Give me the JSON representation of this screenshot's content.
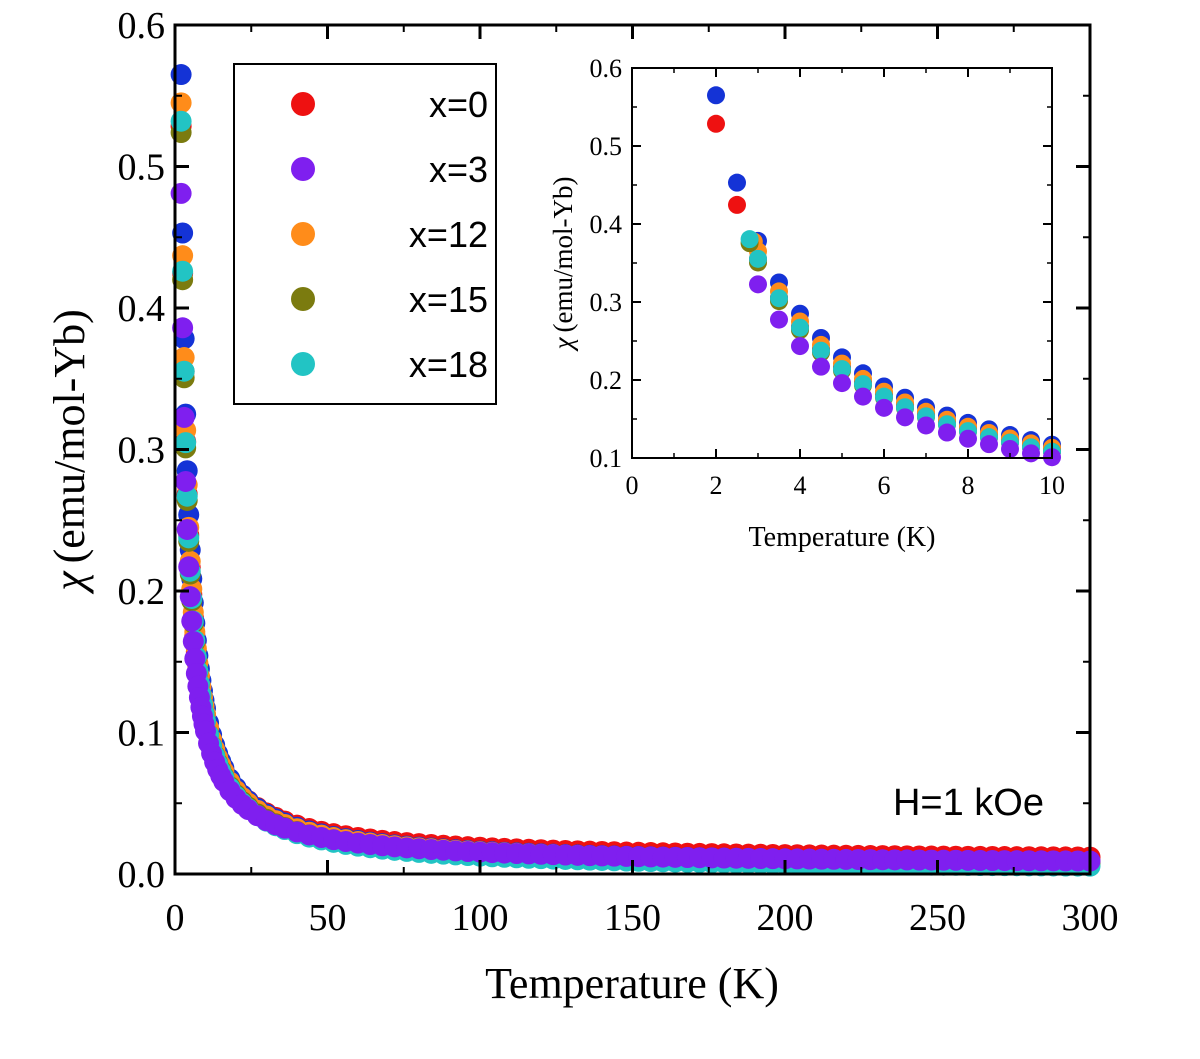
{
  "chart_data": [
    {
      "type": "scatter",
      "xlabel": "Temperature (K)",
      "ylabel_symbol": "χ",
      "ylabel": "(emu/mol-Yb)",
      "xlim": [
        0,
        300
      ],
      "ylim": [
        0,
        0.6
      ],
      "xticks": [
        "0",
        "50",
        "100",
        "150",
        "200",
        "250",
        "300"
      ],
      "yticks": [
        "0.0",
        "0.1",
        "0.2",
        "0.3",
        "0.4",
        "0.5",
        "0.6"
      ],
      "grid": false,
      "legend_position": "top-left",
      "annotation": "H=1 kOe",
      "curve_model": "chi = A / T + chi0",
      "series": [
        {
          "name": "x=0",
          "color": "#ee1111",
          "A": 1.04,
          "chi0": 0.0085
        },
        {
          "name": "x=3",
          "color": "#7f1fef",
          "A": 0.95,
          "chi0": 0.006
        },
        {
          "name": "x=12",
          "color": "#ff8c1a",
          "A": 1.08,
          "chi0": 0.005
        },
        {
          "name": "x=15",
          "color": "#7b7b0f",
          "A": 1.04,
          "chi0": 0.004
        },
        {
          "name": "x=18",
          "color": "#22c4c4",
          "A": 1.06,
          "chi0": 0.002
        },
        {
          "name": "",
          "color": "#1433d6",
          "A": 1.12,
          "chi0": 0.005
        }
      ]
    },
    {
      "type": "scatter",
      "role": "inset",
      "xlabel": "Temperature (K)",
      "ylabel_symbol": "χ",
      "ylabel": "(emu/mol-Yb)",
      "xlim": [
        0,
        10
      ],
      "ylim": [
        0.1,
        0.6
      ],
      "xticks": [
        "0",
        "2",
        "4",
        "6",
        "8",
        "10"
      ],
      "yticks": [
        "0.1",
        "0.2",
        "0.3",
        "0.4",
        "0.5",
        "0.6"
      ],
      "grid": false
    }
  ]
}
